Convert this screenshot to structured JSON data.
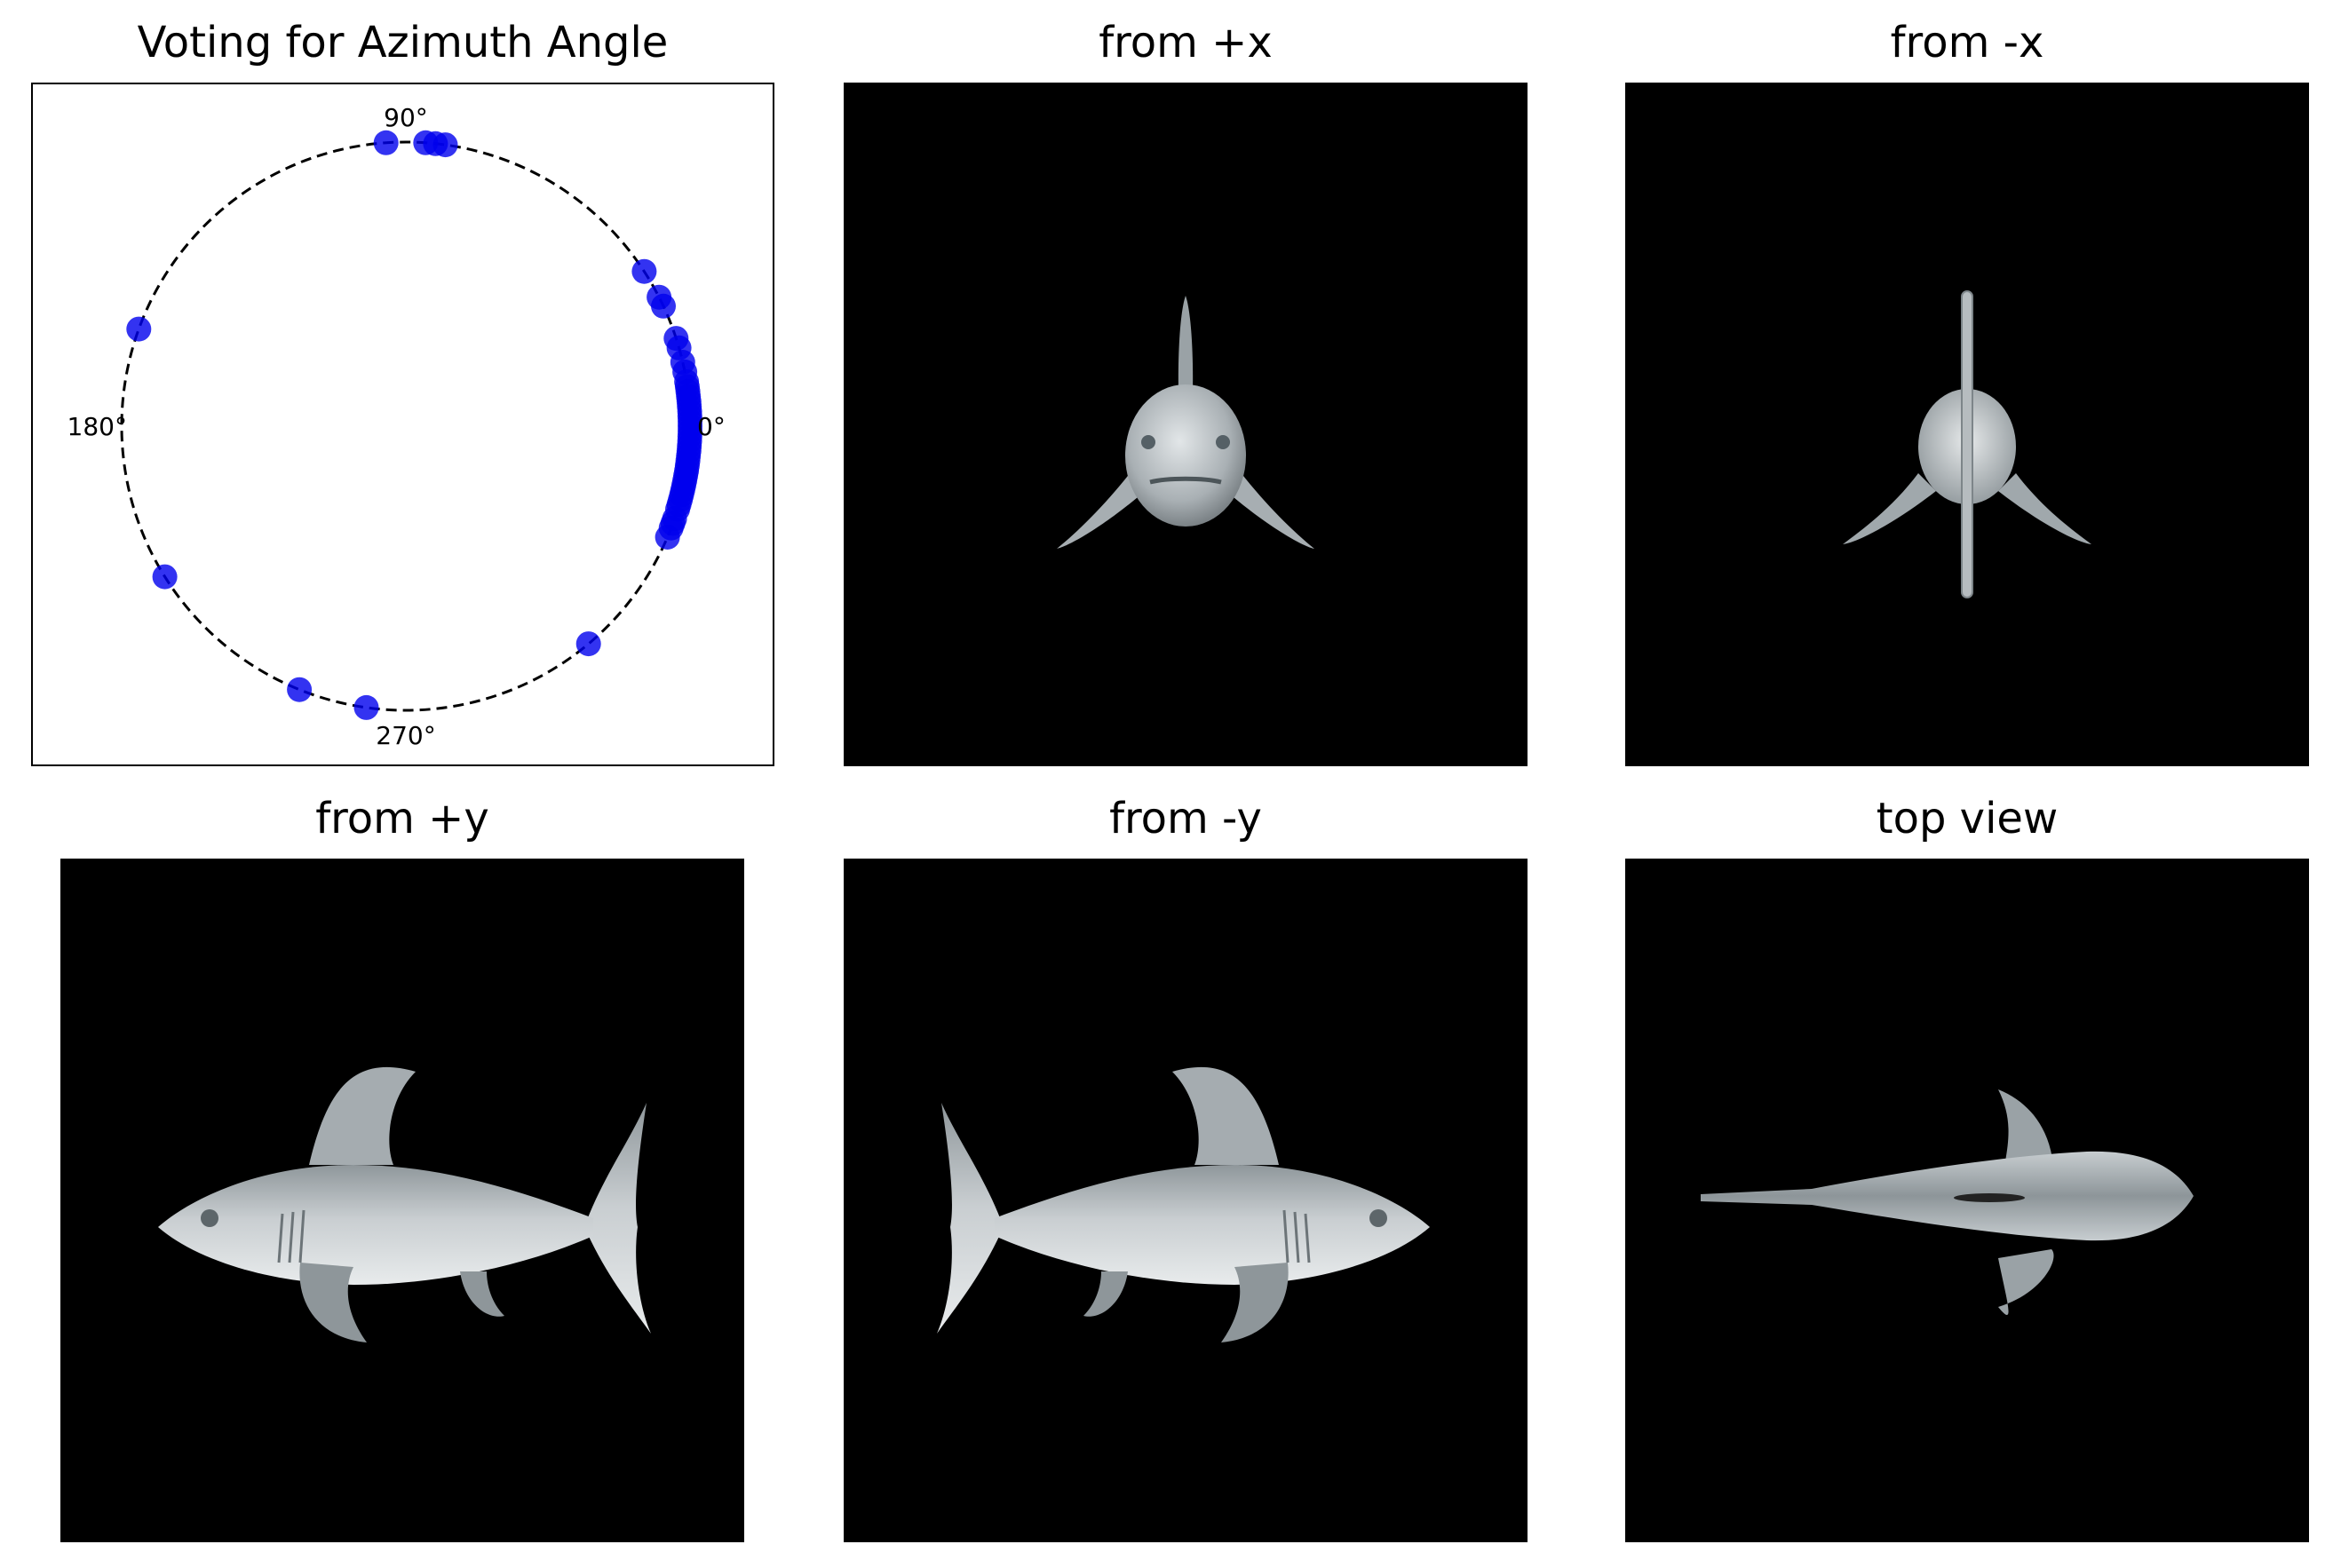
{
  "chart_data": {
    "type": "scatter",
    "projection": "polar-circle",
    "title": "Voting for Azimuth Angle",
    "angle_ticks": [
      {
        "deg": 0,
        "label": "0°"
      },
      {
        "deg": 90,
        "label": "90°"
      },
      {
        "deg": 180,
        "label": "180°"
      },
      {
        "deg": 270,
        "label": "270°"
      }
    ],
    "radius": 1.0,
    "circle_style": "dashed",
    "grid": false,
    "point_color": "#0000ee",
    "votes_deg": [
      94,
      86,
      84,
      82,
      33,
      27,
      25,
      18,
      16,
      13,
      11,
      9,
      8,
      7,
      6,
      5,
      4,
      3,
      2,
      1,
      0,
      359,
      358,
      357,
      356,
      355,
      354,
      353,
      352,
      351,
      350,
      349,
      348,
      347,
      346,
      345,
      344,
      343,
      341,
      340,
      339,
      337,
      310,
      262,
      248,
      212,
      160
    ]
  },
  "panels": [
    {
      "title": "from +x",
      "view": "front"
    },
    {
      "title": "from -x",
      "view": "back"
    },
    {
      "title": "from +y",
      "view": "side-facing-left"
    },
    {
      "title": "from -y",
      "view": "side-facing-right"
    },
    {
      "title": "top view",
      "view": "top"
    }
  ]
}
